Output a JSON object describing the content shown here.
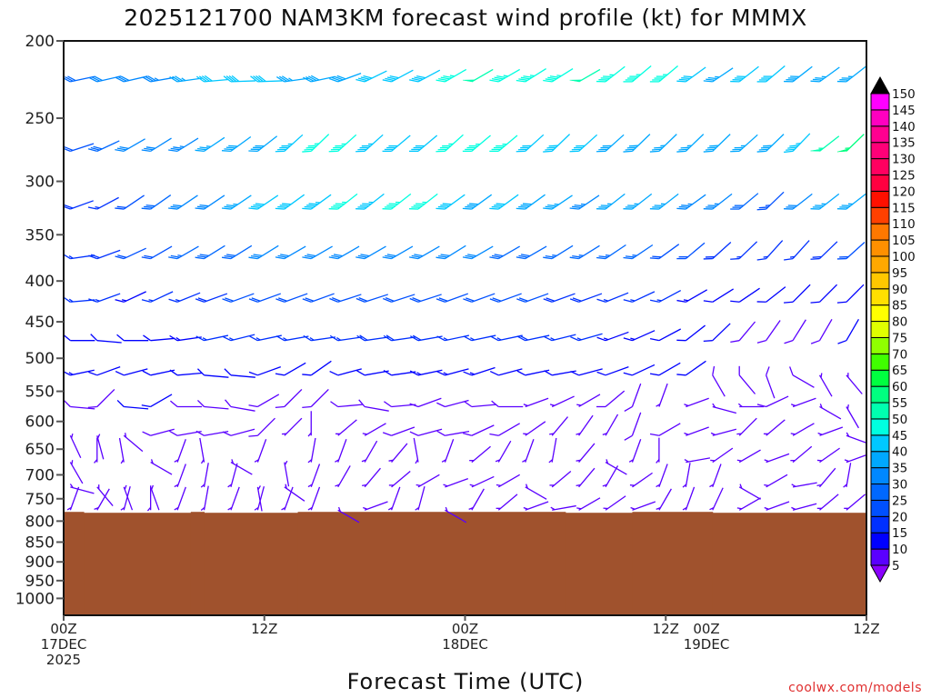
{
  "chart_data": {
    "type": "wind-barb time-height",
    "title": "2025121700 NAM3KM forecast wind profile (kt) for MMMX",
    "xlabel": "Forecast Time (UTC)",
    "ylabel": "",
    "credit": "coolwx.com/models",
    "units": "kt",
    "xlim_hours": [
      0,
      48
    ],
    "ylim_hpa": [
      200,
      1050
    ],
    "y_scale": "log",
    "y_ticks": [
      200,
      250,
      300,
      350,
      400,
      450,
      500,
      550,
      600,
      650,
      700,
      750,
      800,
      850,
      900,
      950,
      1000
    ],
    "x_ticks": [
      {
        "hour": 0,
        "lines": [
          "00Z",
          "17DEC",
          "2025"
        ]
      },
      {
        "hour": 12,
        "lines": [
          "12Z"
        ]
      },
      {
        "hour": 24,
        "lines": [
          "00Z",
          "18DEC"
        ]
      },
      {
        "hour": 36,
        "lines": [
          "12Z"
        ]
      },
      {
        "hour": 48,
        "lines": [
          "19DEC"
        ],
        "note": "placed under 00Z 19DEC"
      },
      {
        "hour": 48,
        "lines": [
          "12Z"
        ]
      }
    ],
    "colorbar": {
      "levels": [
        5,
        10,
        15,
        20,
        25,
        30,
        35,
        40,
        45,
        50,
        55,
        60,
        65,
        70,
        75,
        80,
        85,
        90,
        95,
        100,
        105,
        110,
        115,
        120,
        125,
        130,
        135,
        140,
        145,
        150
      ],
      "colors": [
        "#8a00ff",
        "#5a00ff",
        "#0000ff",
        "#0030ff",
        "#0050ff",
        "#0068ff",
        "#0088ff",
        "#00a8ff",
        "#00c8ff",
        "#00ffe0",
        "#00ffb0",
        "#00ff80",
        "#00ff40",
        "#40ff00",
        "#90ff00",
        "#e0ff00",
        "#ffff00",
        "#ffe000",
        "#ffc800",
        "#ffa800",
        "#ff9000",
        "#ff7800",
        "#ff4000",
        "#ff1000",
        "#ff0040",
        "#ff0060",
        "#ff0078",
        "#ff0090",
        "#ff00c0",
        "#ff00ff"
      ],
      "under_color": "#8a00ff",
      "over_color": "#000000"
    },
    "terrain_color": "#a0522d",
    "surface_pressure": [
      {
        "from": 0,
        "to": 1.2,
        "p": 779
      },
      {
        "from": 1.2,
        "to": 7.6,
        "p": 781
      },
      {
        "from": 7.6,
        "to": 8.4,
        "p": 779
      },
      {
        "from": 8.4,
        "to": 14,
        "p": 781
      },
      {
        "from": 14,
        "to": 30,
        "p": 779
      },
      {
        "from": 30,
        "to": 34,
        "p": 781
      },
      {
        "from": 34,
        "to": 38.8,
        "p": 779
      },
      {
        "from": 38.8,
        "to": 48,
        "p": 781
      }
    ],
    "hours": [
      0.4,
      2,
      3.6,
      5.2,
      6.8,
      8.4,
      10,
      11.6,
      13.2,
      14.8,
      16.4,
      18,
      19.6,
      21.2,
      22.8,
      24.4,
      26,
      27.6,
      29.2,
      30.8,
      32.4,
      34,
      35.6,
      37.2,
      38.8,
      40.4,
      42,
      43.6,
      45.2,
      46.8
    ],
    "levels": [
      {
        "p": 225,
        "speed": [
          28,
          30,
          32,
          33,
          35,
          40,
          41,
          40,
          36,
          38,
          38,
          40,
          41,
          42,
          46,
          50,
          46,
          47,
          46,
          50,
          47,
          47,
          46,
          42,
          37,
          40,
          40,
          38,
          35,
          37
        ],
        "dir": [
          258,
          257,
          257,
          260,
          262,
          265,
          268,
          268,
          262,
          258,
          250,
          244,
          242,
          242,
          240,
          240,
          240,
          238,
          238,
          240,
          232,
          230,
          230,
          234,
          236,
          232,
          230,
          232,
          234,
          232
        ]
      },
      {
        "p": 275,
        "speed": [
          22,
          28,
          30,
          31,
          33,
          37,
          38,
          39,
          44,
          47,
          46,
          44,
          42,
          42,
          46,
          46,
          46,
          40,
          40,
          40,
          38,
          38,
          36,
          36,
          38,
          37,
          38,
          44,
          53,
          55
        ],
        "dir": [
          252,
          245,
          240,
          238,
          238,
          236,
          234,
          232,
          228,
          226,
          228,
          228,
          230,
          230,
          228,
          230,
          230,
          228,
          226,
          228,
          228,
          226,
          226,
          226,
          226,
          228,
          226,
          224,
          232,
          226
        ]
      },
      {
        "p": 325,
        "speed": [
          18,
          17,
          22,
          28,
          30,
          32,
          36,
          40,
          41,
          44,
          47,
          44,
          47,
          47,
          40,
          38,
          40,
          38,
          35,
          33,
          36,
          36,
          36,
          34,
          33,
          28,
          24,
          30,
          36,
          36
        ],
        "dir": [
          250,
          242,
          236,
          235,
          236,
          236,
          236,
          236,
          234,
          234,
          232,
          232,
          232,
          232,
          234,
          234,
          234,
          234,
          236,
          236,
          232,
          232,
          232,
          234,
          232,
          230,
          226,
          232,
          232,
          232
        ]
      },
      {
        "p": 375,
        "speed": [
          15,
          18,
          20,
          22,
          25,
          28,
          28,
          30,
          30,
          32,
          30,
          32,
          30,
          30,
          32,
          30,
          28,
          28,
          27,
          27,
          25,
          25,
          22,
          20,
          18,
          16,
          15,
          15,
          18,
          20
        ],
        "dir": [
          262,
          250,
          245,
          240,
          240,
          238,
          238,
          238,
          240,
          240,
          240,
          240,
          240,
          240,
          238,
          240,
          240,
          240,
          238,
          238,
          236,
          236,
          234,
          230,
          228,
          226,
          222,
          222,
          226,
          228
        ]
      },
      {
        "p": 425,
        "speed": [
          15,
          15,
          14,
          15,
          16,
          18,
          20,
          20,
          22,
          22,
          22,
          22,
          22,
          20,
          20,
          20,
          20,
          20,
          18,
          18,
          17,
          16,
          15,
          14,
          12,
          12,
          12,
          10,
          12,
          12
        ],
        "dir": [
          265,
          250,
          245,
          245,
          248,
          250,
          250,
          250,
          250,
          250,
          252,
          252,
          252,
          252,
          250,
          250,
          250,
          250,
          250,
          250,
          248,
          245,
          242,
          240,
          238,
          236,
          232,
          225,
          225,
          225
        ]
      },
      {
        "p": 475,
        "speed": [
          11,
          12,
          12,
          12,
          13,
          15,
          15,
          15,
          15,
          17,
          17,
          18,
          18,
          18,
          17,
          17,
          17,
          18,
          16,
          15,
          14,
          13,
          12,
          10,
          10,
          9,
          8,
          8,
          8,
          10
        ],
        "dir": [
          270,
          275,
          270,
          265,
          262,
          258,
          256,
          258,
          260,
          262,
          262,
          262,
          262,
          260,
          258,
          258,
          258,
          258,
          256,
          254,
          250,
          246,
          242,
          232,
          226,
          220,
          215,
          212,
          210,
          210
        ]
      },
      {
        "p": 525,
        "speed": [
          14,
          12,
          12,
          12,
          12,
          11,
          10,
          10,
          10,
          11,
          12,
          12,
          12,
          13,
          13,
          13,
          12,
          12,
          12,
          11,
          12,
          12,
          11,
          10,
          9,
          8,
          8,
          8,
          7,
          7
        ],
        "dir": [
          258,
          250,
          255,
          258,
          265,
          275,
          275,
          250,
          240,
          235,
          255,
          260,
          262,
          258,
          255,
          252,
          255,
          258,
          260,
          255,
          250,
          245,
          240,
          235,
          330,
          320,
          340,
          300,
          330,
          320
        ]
      },
      {
        "p": 575,
        "speed": [
          8,
          9,
          10,
          10,
          9,
          9,
          8,
          8,
          9,
          9,
          8,
          8,
          8,
          8,
          8,
          8,
          8,
          7,
          7,
          7,
          8,
          8,
          7,
          7,
          7,
          7,
          8,
          7,
          6,
          6
        ],
        "dir": [
          275,
          225,
          275,
          240,
          270,
          275,
          280,
          240,
          225,
          225,
          265,
          280,
          265,
          250,
          255,
          265,
          270,
          250,
          245,
          240,
          230,
          200,
          200,
          250,
          285,
          270,
          245,
          250,
          300,
          330
        ]
      },
      {
        "p": 625,
        "speed": [
          7,
          6,
          7,
          8,
          9,
          9,
          8,
          8,
          6,
          6,
          7,
          7,
          8,
          8,
          9,
          9,
          8,
          7,
          6,
          7,
          7,
          8,
          8,
          7,
          6,
          6,
          7,
          7,
          7,
          6
        ],
        "dir": [
          335,
          345,
          310,
          255,
          260,
          260,
          255,
          225,
          225,
          180,
          230,
          240,
          250,
          255,
          260,
          245,
          240,
          235,
          220,
          215,
          210,
          200,
          240,
          250,
          255,
          225,
          230,
          240,
          250,
          290
        ]
      },
      {
        "p": 675,
        "speed": [
          6,
          6,
          6,
          6,
          5,
          5,
          6,
          6,
          5,
          5,
          6,
          6,
          6,
          6,
          5,
          5,
          6,
          6,
          5,
          5,
          5,
          6,
          6,
          6,
          5,
          5,
          6,
          6,
          6,
          6
        ],
        "dir": [
          330,
          180,
          170,
          300,
          200,
          170,
          300,
          200,
          350,
          190,
          200,
          210,
          220,
          170,
          200,
          230,
          210,
          200,
          190,
          220,
          300,
          200,
          180,
          260,
          235,
          240,
          250,
          230,
          235,
          250
        ]
      },
      {
        "p": 725,
        "speed": [
          6,
          6,
          6,
          5,
          5,
          5,
          5,
          5,
          6,
          6,
          5,
          5,
          6,
          6,
          5,
          5,
          5,
          6,
          6,
          5,
          6,
          5,
          5,
          6,
          6,
          5,
          5,
          6,
          6,
          5
        ],
        "dir": [
          285,
          320,
          340,
          340,
          200,
          190,
          195,
          350,
          305,
          200,
          210,
          220,
          230,
          240,
          250,
          245,
          240,
          300,
          230,
          220,
          210,
          235,
          200,
          190,
          200,
          300,
          240,
          260,
          220,
          190
        ]
      },
      {
        "p": 775,
        "speed": [
          5,
          5,
          5,
          5,
          5,
          6,
          6,
          5,
          5,
          5,
          5,
          5,
          6,
          6,
          5,
          5,
          5,
          5,
          6,
          6,
          5,
          5,
          5,
          5,
          5,
          5,
          5,
          5,
          5,
          5
        ],
        "dir": [
          200,
          210,
          195,
          180,
          200,
          190,
          200,
          195,
          200,
          200,
          300,
          250,
          200,
          195,
          300,
          210,
          230,
          250,
          260,
          240,
          235,
          250,
          210,
          200,
          205,
          240,
          250,
          255,
          230,
          230
        ]
      }
    ]
  }
}
